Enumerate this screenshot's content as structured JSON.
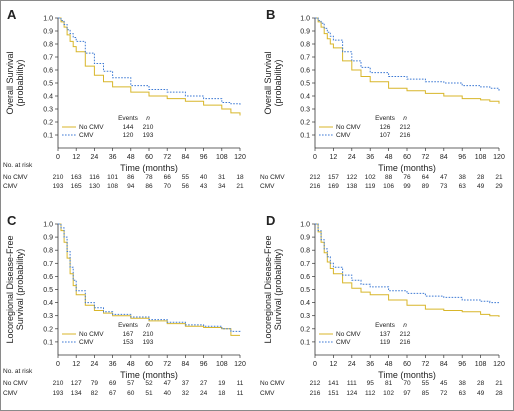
{
  "chart_data": [
    {
      "type": "line",
      "panel": "A",
      "ylabel": "Overall Survival\n(probability)",
      "xlabel": "Time (months)",
      "xlim": [
        0,
        120
      ],
      "ylim": [
        0,
        1
      ],
      "x_ticks": [
        0,
        12,
        24,
        36,
        48,
        60,
        72,
        84,
        96,
        108,
        120
      ],
      "y_ticks": [
        0.1,
        0.2,
        0.3,
        0.4,
        0.5,
        0.6,
        0.7,
        0.8,
        0.9,
        1.0
      ],
      "legend_header": [
        "Events",
        "n"
      ],
      "series": [
        {
          "name": "No CMV",
          "events": "144",
          "n": "210",
          "color": "#d8b62a",
          "dash": "solid",
          "x": [
            0,
            2,
            4,
            6,
            8,
            10,
            12,
            18,
            24,
            30,
            36,
            48,
            60,
            72,
            84,
            96,
            108,
            114,
            120
          ],
          "y": [
            1.0,
            0.97,
            0.93,
            0.87,
            0.82,
            0.78,
            0.74,
            0.63,
            0.56,
            0.51,
            0.47,
            0.43,
            0.4,
            0.38,
            0.36,
            0.33,
            0.3,
            0.27,
            0.25
          ]
        },
        {
          "name": "CMV",
          "events": "120",
          "n": "193",
          "color": "#3e7ad4",
          "dash": "dot",
          "x": [
            0,
            2,
            4,
            6,
            8,
            10,
            12,
            18,
            24,
            30,
            36,
            48,
            60,
            72,
            84,
            96,
            108,
            114,
            120
          ],
          "y": [
            1.0,
            0.98,
            0.95,
            0.91,
            0.88,
            0.85,
            0.82,
            0.73,
            0.65,
            0.59,
            0.54,
            0.48,
            0.45,
            0.43,
            0.4,
            0.38,
            0.35,
            0.34,
            0.33
          ]
        }
      ],
      "at_risk": {
        "title": "No. at risk",
        "rows": [
          {
            "label": "No CMV",
            "values": [
              "210",
              "163",
              "116",
              "101",
              "86",
              "78",
              "66",
              "55",
              "40",
              "31",
              "18"
            ]
          },
          {
            "label": "CMV",
            "values": [
              "193",
              "165",
              "130",
              "108",
              "94",
              "86",
              "70",
              "56",
              "43",
              "34",
              "21"
            ]
          }
        ]
      }
    },
    {
      "type": "line",
      "panel": "B",
      "ylabel": "Overall Survival\n(probability)",
      "xlabel": "Time (months)",
      "xlim": [
        0,
        120
      ],
      "ylim": [
        0,
        1
      ],
      "x_ticks": [
        0,
        12,
        24,
        36,
        48,
        60,
        72,
        84,
        96,
        108,
        120
      ],
      "y_ticks": [
        0.1,
        0.2,
        0.3,
        0.4,
        0.5,
        0.6,
        0.7,
        0.8,
        0.9,
        1.0
      ],
      "legend_header": [
        "Events",
        "n"
      ],
      "series": [
        {
          "name": "No CMV",
          "events": "126",
          "n": "212",
          "color": "#d8b62a",
          "dash": "solid",
          "x": [
            0,
            2,
            4,
            6,
            8,
            10,
            12,
            18,
            24,
            30,
            36,
            48,
            60,
            72,
            84,
            96,
            108,
            114,
            120
          ],
          "y": [
            1.0,
            0.97,
            0.93,
            0.88,
            0.84,
            0.8,
            0.77,
            0.67,
            0.6,
            0.55,
            0.51,
            0.46,
            0.44,
            0.42,
            0.4,
            0.38,
            0.37,
            0.36,
            0.34
          ]
        },
        {
          "name": "CMV",
          "events": "107",
          "n": "216",
          "color": "#3e7ad4",
          "dash": "dot",
          "x": [
            0,
            2,
            4,
            6,
            8,
            10,
            12,
            18,
            24,
            30,
            36,
            48,
            60,
            72,
            84,
            96,
            108,
            114,
            120
          ],
          "y": [
            1.0,
            0.98,
            0.96,
            0.92,
            0.89,
            0.86,
            0.83,
            0.74,
            0.67,
            0.62,
            0.58,
            0.55,
            0.53,
            0.51,
            0.5,
            0.48,
            0.47,
            0.46,
            0.44
          ]
        }
      ],
      "at_risk": {
        "title": "",
        "rows": [
          {
            "label": "No CMV",
            "values": [
              "212",
              "157",
              "122",
              "102",
              "88",
              "76",
              "64",
              "47",
              "38",
              "28",
              "21"
            ]
          },
          {
            "label": "CMV",
            "values": [
              "216",
              "169",
              "138",
              "119",
              "106",
              "99",
              "89",
              "73",
              "63",
              "49",
              "29"
            ]
          }
        ]
      }
    },
    {
      "type": "line",
      "panel": "C",
      "ylabel": "Locoregional Disease-Free\nSurvival (probability)",
      "xlabel": "Time (months)",
      "xlim": [
        0,
        120
      ],
      "ylim": [
        0,
        1
      ],
      "x_ticks": [
        0,
        12,
        24,
        36,
        48,
        60,
        72,
        84,
        96,
        108,
        120
      ],
      "y_ticks": [
        0.1,
        0.2,
        0.3,
        0.4,
        0.5,
        0.6,
        0.7,
        0.8,
        0.9,
        1.0
      ],
      "legend_header": [
        "Events",
        "n"
      ],
      "series": [
        {
          "name": "No CMV",
          "events": "167",
          "n": "210",
          "color": "#d8b62a",
          "dash": "solid",
          "x": [
            0,
            2,
            4,
            6,
            8,
            10,
            12,
            18,
            24,
            30,
            36,
            48,
            60,
            72,
            84,
            96,
            108,
            114,
            120
          ],
          "y": [
            1.0,
            0.95,
            0.86,
            0.74,
            0.62,
            0.53,
            0.46,
            0.38,
            0.34,
            0.32,
            0.3,
            0.28,
            0.26,
            0.24,
            0.22,
            0.21,
            0.2,
            0.15,
            0.15
          ]
        },
        {
          "name": "CMV",
          "events": "153",
          "n": "193",
          "color": "#3e7ad4",
          "dash": "dot",
          "x": [
            0,
            2,
            4,
            6,
            8,
            10,
            12,
            18,
            24,
            30,
            36,
            48,
            60,
            72,
            84,
            96,
            108,
            114,
            120
          ],
          "y": [
            1.0,
            0.97,
            0.9,
            0.79,
            0.67,
            0.57,
            0.49,
            0.4,
            0.36,
            0.33,
            0.31,
            0.29,
            0.27,
            0.25,
            0.23,
            0.22,
            0.2,
            0.18,
            0.17
          ]
        }
      ],
      "at_risk": {
        "title": "No. at risk",
        "rows": [
          {
            "label": "No CMV",
            "values": [
              "210",
              "127",
              "79",
              "69",
              "57",
              "52",
              "47",
              "37",
              "27",
              "19",
              "11"
            ]
          },
          {
            "label": "CMV",
            "values": [
              "193",
              "134",
              "82",
              "67",
              "60",
              "51",
              "40",
              "32",
              "24",
              "18",
              "11"
            ]
          }
        ]
      }
    },
    {
      "type": "line",
      "panel": "D",
      "ylabel": "Locoregional Disease-Free\nSurvival (probability)",
      "xlabel": "Time (months)",
      "xlim": [
        0,
        120
      ],
      "ylim": [
        0,
        1
      ],
      "x_ticks": [
        0,
        12,
        24,
        36,
        48,
        60,
        72,
        84,
        96,
        108,
        120
      ],
      "y_ticks": [
        0.1,
        0.2,
        0.3,
        0.4,
        0.5,
        0.6,
        0.7,
        0.8,
        0.9,
        1.0
      ],
      "legend_header": [
        "Events",
        "n"
      ],
      "series": [
        {
          "name": "No CMV",
          "events": "137",
          "n": "212",
          "color": "#d8b62a",
          "dash": "solid",
          "x": [
            0,
            2,
            4,
            6,
            8,
            10,
            12,
            18,
            24,
            30,
            36,
            48,
            60,
            72,
            84,
            96,
            108,
            114,
            120
          ],
          "y": [
            1.0,
            0.94,
            0.86,
            0.78,
            0.71,
            0.66,
            0.62,
            0.55,
            0.51,
            0.48,
            0.46,
            0.42,
            0.38,
            0.35,
            0.34,
            0.33,
            0.31,
            0.3,
            0.29
          ]
        },
        {
          "name": "CMV",
          "events": "119",
          "n": "216",
          "color": "#3e7ad4",
          "dash": "dot",
          "x": [
            0,
            2,
            4,
            6,
            8,
            10,
            12,
            18,
            24,
            30,
            36,
            48,
            60,
            72,
            84,
            96,
            108,
            114,
            120
          ],
          "y": [
            1.0,
            0.95,
            0.88,
            0.81,
            0.75,
            0.7,
            0.67,
            0.61,
            0.57,
            0.54,
            0.52,
            0.49,
            0.47,
            0.45,
            0.44,
            0.42,
            0.41,
            0.4,
            0.39
          ]
        }
      ],
      "at_risk": {
        "title": "",
        "rows": [
          {
            "label": "No CMV",
            "values": [
              "212",
              "141",
              "111",
              "95",
              "81",
              "70",
              "55",
              "45",
              "38",
              "28",
              "21"
            ]
          },
          {
            "label": "CMV",
            "values": [
              "216",
              "151",
              "124",
              "112",
              "102",
              "97",
              "85",
              "72",
              "63",
              "49",
              "28"
            ]
          }
        ]
      }
    }
  ]
}
